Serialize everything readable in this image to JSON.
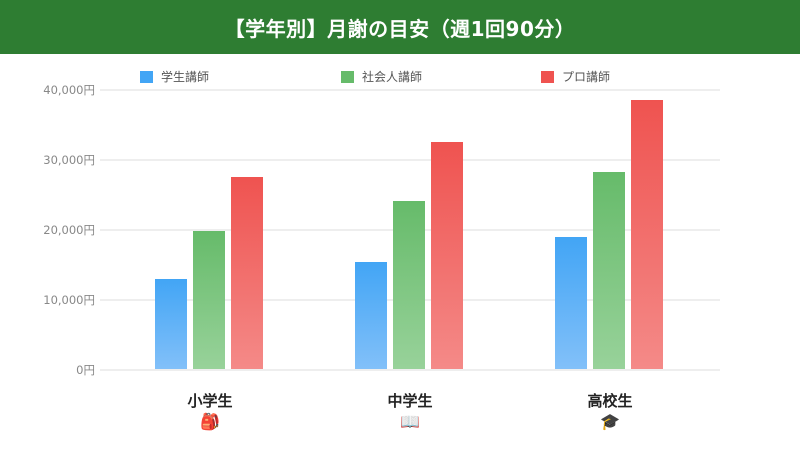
{
  "header": {
    "title": "【学年別】月謝の目安（週1回90分）"
  },
  "legend": [
    {
      "label": "学生講師",
      "color": "#42a5f5"
    },
    {
      "label": "社会人講師",
      "color": "#66bb6a"
    },
    {
      "label": "プロ講師",
      "color": "#ef5350"
    }
  ],
  "yaxis": {
    "ticks": [
      "40,000円",
      "30,000円",
      "20,000円",
      "10,000円",
      "0円"
    ]
  },
  "categories": [
    {
      "label": "小学生",
      "icon": "🎒",
      "icon_name": "backpack-icon"
    },
    {
      "label": "中学生",
      "icon": "📖",
      "icon_name": "open-book-icon"
    },
    {
      "label": "高校生",
      "icon": "🎓",
      "icon_name": "graduation-cap-icon"
    }
  ],
  "chart_data": {
    "type": "bar",
    "title": "【学年別】月謝の目安（週1回90分）",
    "categories": [
      "小学生",
      "中学生",
      "高校生"
    ],
    "series": [
      {
        "name": "学生講師",
        "color": "#42a5f5",
        "values": [
          12800,
          15300,
          18800
        ]
      },
      {
        "name": "社会人講師",
        "color": "#66bb6a",
        "values": [
          19700,
          24000,
          28200
        ]
      },
      {
        "name": "プロ講師",
        "color": "#ef5350",
        "values": [
          27400,
          32500,
          38500
        ]
      }
    ],
    "xlabel": "",
    "ylabel": "",
    "ylim": [
      0,
      40000
    ],
    "ytick_labels": [
      "0円",
      "10,000円",
      "20,000円",
      "30,000円",
      "40,000円"
    ],
    "grid": true,
    "legend_position": "top"
  }
}
